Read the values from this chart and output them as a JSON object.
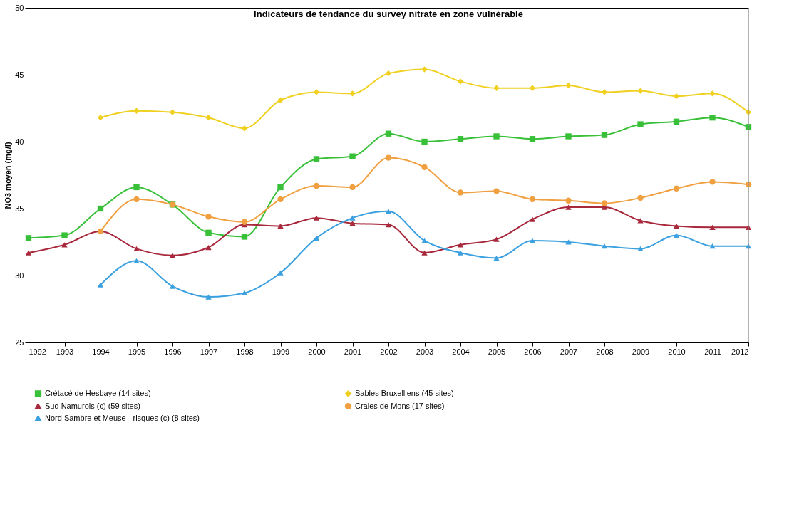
{
  "chart_data": {
    "type": "line",
    "title": "Indicateurs de tendance du survey nitrate en zone vulnérable",
    "ylabel": "NO3 moyen (mg/l)",
    "categories": [
      "1992",
      "1993",
      "1994",
      "1995",
      "1996",
      "1997",
      "1998",
      "1999",
      "2000",
      "2001",
      "2002",
      "2003",
      "2004",
      "2005",
      "2006",
      "2007",
      "2008",
      "2009",
      "2010",
      "2011",
      "2012"
    ],
    "ylim": [
      25,
      50
    ],
    "yticks": [
      25,
      30,
      35,
      40,
      45,
      50
    ],
    "grid": "y",
    "legend": "bottom",
    "series": [
      {
        "name": "Crétacé de Hesbaye (14 sites)",
        "color": "#38c038",
        "marker": "square",
        "values": [
          32.8,
          33.0,
          35.0,
          36.6,
          35.3,
          33.2,
          32.9,
          36.6,
          38.7,
          38.9,
          40.6,
          40.0,
          40.2,
          40.4,
          40.2,
          40.4,
          40.5,
          41.3,
          41.5,
          41.8,
          41.1
        ]
      },
      {
        "name": "Sables Bruxelliens (45 sites)",
        "color": "#f0d020",
        "marker": "diamond",
        "values": [
          null,
          null,
          41.8,
          42.3,
          42.2,
          41.8,
          41.0,
          43.1,
          43.7,
          43.6,
          45.1,
          45.4,
          44.5,
          44.0,
          44.0,
          44.2,
          43.7,
          43.8,
          43.4,
          43.6,
          42.2
        ]
      },
      {
        "name": "Sud Namurois (c) (59 sites)",
        "color": "#a8283c",
        "marker": "triangle",
        "values": [
          31.7,
          32.3,
          33.3,
          32.0,
          31.5,
          32.1,
          33.8,
          33.7,
          34.3,
          33.9,
          33.8,
          31.7,
          32.3,
          32.7,
          34.2,
          35.1,
          35.1,
          34.1,
          33.7,
          33.6,
          33.6
        ]
      },
      {
        "name": "Craies de Mons (17 sites)",
        "color": "#f0a040",
        "marker": "circle",
        "values": [
          null,
          null,
          33.3,
          35.7,
          35.3,
          34.4,
          34.0,
          35.7,
          36.7,
          36.6,
          38.8,
          38.1,
          36.2,
          36.3,
          35.7,
          35.6,
          35.4,
          35.8,
          36.5,
          37.0,
          36.8
        ]
      },
      {
        "name": "Nord Sambre et Meuse - risques (c) (8 sites)",
        "color": "#3aa0e0",
        "marker": "triangle",
        "values": [
          null,
          null,
          29.3,
          31.1,
          29.2,
          28.4,
          28.7,
          30.2,
          32.8,
          34.3,
          34.8,
          32.6,
          31.7,
          31.3,
          32.6,
          32.5,
          32.2,
          32.0,
          33.0,
          32.2,
          32.2
        ]
      }
    ]
  }
}
